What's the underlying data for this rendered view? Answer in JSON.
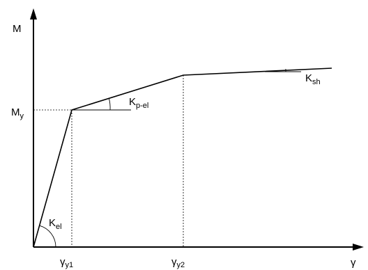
{
  "axes": {
    "y_label": "M",
    "x_label": "γ"
  },
  "labels": {
    "my": {
      "main": "M",
      "sub": "y"
    },
    "gamma_y1": {
      "main": "γ",
      "sub": "y1"
    },
    "gamma_y2": {
      "main": "γ",
      "sub": "y2"
    },
    "k_el": {
      "main": "K",
      "sub": "el"
    },
    "k_p_el": {
      "main": "K",
      "sub": "p-el"
    },
    "k_sh": {
      "main": "K",
      "sub": "sh"
    }
  }
}
